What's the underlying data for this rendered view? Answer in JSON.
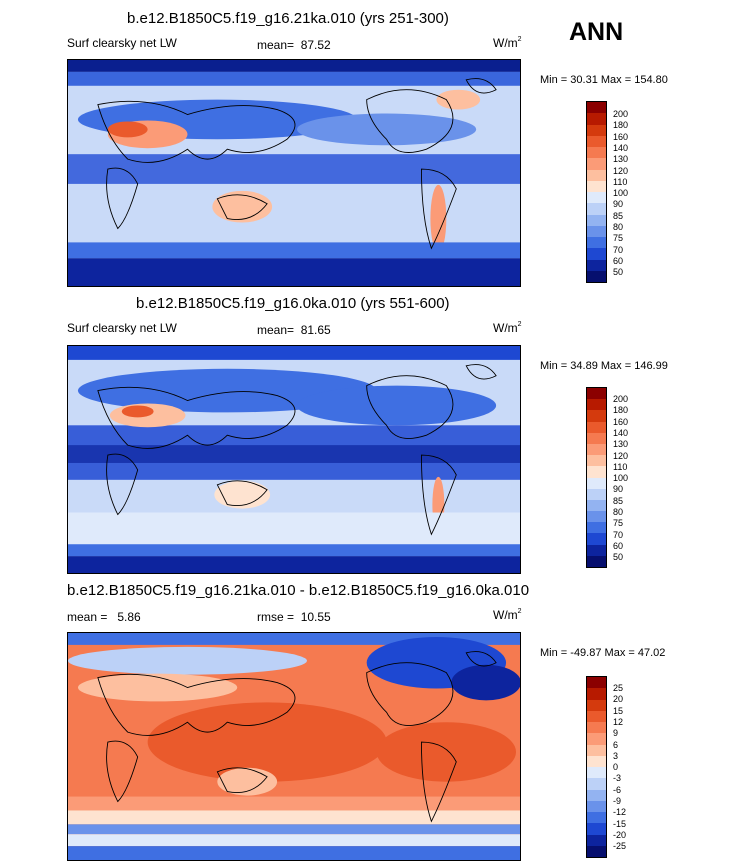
{
  "season": "ANN",
  "chart_data": [
    {
      "type": "heatmap",
      "title": "b.e12.B1850C5.f19_g16.21ka.010 (yrs 251-300)",
      "variable": "Surf clearsky net LW",
      "mean_label": "mean=",
      "mean": "87.52",
      "units": "W/m",
      "units_sup": "2",
      "min_label": "Min =",
      "min": "30.31",
      "max_label": "Max =",
      "max": "154.80",
      "colorbar_levels": [
        "200",
        "180",
        "160",
        "140",
        "130",
        "120",
        "110",
        "100",
        "90",
        "85",
        "80",
        "75",
        "70",
        "60",
        "50"
      ],
      "colorbar_colors": [
        "#8b0000",
        "#b71a00",
        "#d43a0d",
        "#ea5a2c",
        "#f57a50",
        "#fb9b77",
        "#fdbf9f",
        "#fee3d0",
        "#dfeafb",
        "#bcd1f7",
        "#93b3f1",
        "#6a92ea",
        "#3f6fe2",
        "#1e48d2",
        "#0d249e",
        "#060f6e"
      ]
    },
    {
      "type": "heatmap",
      "title": "b.e12.B1850C5.f19_g16.0ka.010 (yrs 551-600)",
      "variable": "Surf clearsky net LW",
      "mean_label": "mean=",
      "mean": "81.65",
      "units": "W/m",
      "units_sup": "2",
      "min_label": "Min =",
      "min": "34.89",
      "max_label": "Max =",
      "max": "146.99",
      "colorbar_levels": [
        "200",
        "180",
        "160",
        "140",
        "130",
        "120",
        "110",
        "100",
        "90",
        "85",
        "80",
        "75",
        "70",
        "60",
        "50"
      ],
      "colorbar_colors": [
        "#8b0000",
        "#b71a00",
        "#d43a0d",
        "#ea5a2c",
        "#f57a50",
        "#fb9b77",
        "#fdbf9f",
        "#fee3d0",
        "#dfeafb",
        "#bcd1f7",
        "#93b3f1",
        "#6a92ea",
        "#3f6fe2",
        "#1e48d2",
        "#0d249e",
        "#060f6e"
      ]
    },
    {
      "type": "heatmap",
      "title": "b.e12.B1850C5.f19_g16.21ka.010 - b.e12.B1850C5.f19_g16.0ka.010",
      "mean_label": "mean =",
      "mean": "5.86",
      "rmse_label": "rmse =",
      "rmse": "10.55",
      "units": "W/m",
      "units_sup": "2",
      "min_label": "Min =",
      "min": "-49.87",
      "max_label": "Max =",
      "max": "47.02",
      "colorbar_levels": [
        "25",
        "20",
        "15",
        "12",
        "9",
        "6",
        "3",
        "0",
        "-3",
        "-6",
        "-9",
        "-12",
        "-15",
        "-20",
        "-25"
      ],
      "colorbar_colors": [
        "#8b0000",
        "#b71a00",
        "#d43a0d",
        "#ea5a2c",
        "#f57a50",
        "#fb9b77",
        "#fdbf9f",
        "#fee3d0",
        "#dfeafb",
        "#bcd1f7",
        "#93b3f1",
        "#6a92ea",
        "#3f6fe2",
        "#1e48d2",
        "#0d249e",
        "#060f6e"
      ]
    }
  ]
}
